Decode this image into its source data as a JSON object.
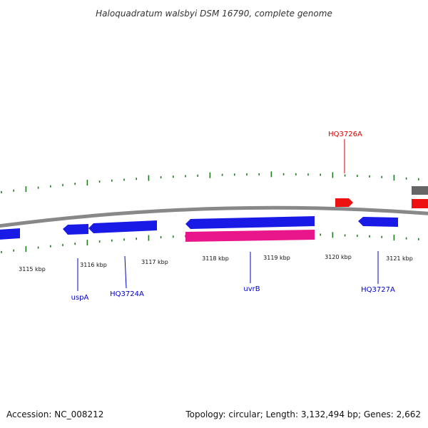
{
  "title": "Haloquadratum walsbyi DSM 16790, complete genome",
  "tick_labels": [
    "3115 kbp",
    "3116 kbp",
    "3117 kbp",
    "3118 kbp",
    "3119 kbp",
    "3120 kbp",
    "3121 kbp"
  ],
  "gene_labels": [
    {
      "text": "uspA",
      "color": "#0000cc"
    },
    {
      "text": "HQ3724A",
      "color": "#0000cc"
    },
    {
      "text": "uvrB",
      "color": "#0000cc"
    },
    {
      "text": "HQ3727A",
      "color": "#0000cc"
    },
    {
      "text": "HQ3726A",
      "color": "#dd0000"
    }
  ],
  "colors": {
    "backbone": "#888888",
    "reverse_gene": "#1a1ae6",
    "forward_gene": "#ee1111",
    "highlight_gene": "#e8168a",
    "other_feature": "#666666",
    "ticks": "#1e7a1e"
  },
  "footer": {
    "accession": "Accession: NC_008212",
    "summary": "Topology: circular; Length: 3,132,494 bp; Genes: 2,662"
  }
}
